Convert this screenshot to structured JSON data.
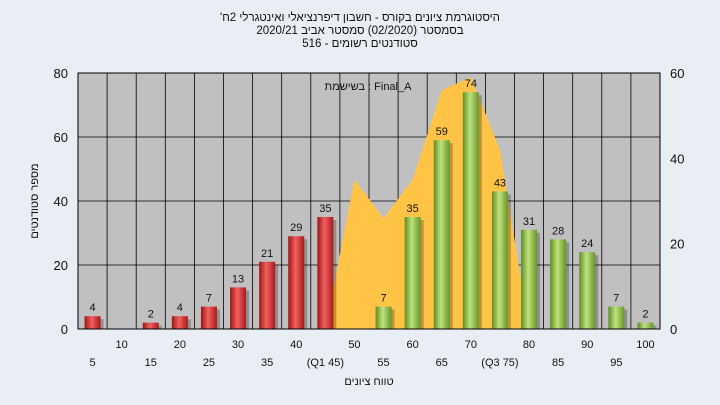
{
  "titles": {
    "line1": "'היסטוגרמת ציונים בקורס - חשבון דיפרנציאלי ואינטגרלי 2ח",
    "line2": "בסמסטר  (02/2020)  סמסטר אביב 2020/21",
    "line3": "סטודנטים רשומים - 516"
  },
  "chart_data": {
    "type": "bar",
    "annotation": "בשישמת : Final_A",
    "xlabel": "טווח ציונים",
    "ylabel": "מספר סטודנטים",
    "ylim": [
      0,
      80
    ],
    "yticks": [
      0,
      20,
      40,
      60,
      80
    ],
    "y2lim": [
      0,
      60
    ],
    "y2ticks": [
      0,
      20,
      40,
      60
    ],
    "grid": true,
    "categories": [
      "5",
      "10",
      "15",
      "20",
      "25",
      "30",
      "35",
      "40",
      "45",
      "50",
      "55",
      "60",
      "65",
      "70",
      "75",
      "80",
      "85",
      "90",
      "95",
      "100"
    ],
    "tick_labels": [
      "5",
      "10",
      "15",
      "20",
      "25",
      "30",
      "35",
      "40",
      "(Q1 45)",
      "50",
      "55",
      "60",
      "65",
      "70",
      "(Q3 75)",
      "80",
      "85",
      "90",
      "95",
      "100"
    ],
    "series": [
      {
        "values": [
          4,
          0,
          2,
          4,
          7,
          13,
          21,
          29,
          35,
          0,
          7,
          35,
          59,
          74,
          43,
          31,
          28,
          24,
          7,
          2
        ],
        "data_labels": [
          "4",
          "",
          "2",
          "4",
          "7",
          "13",
          "21",
          "29",
          "35",
          "",
          "7",
          "35",
          "59",
          "74",
          "43",
          "31",
          "28",
          "24",
          "7",
          "2"
        ],
        "colors": [
          "#e03030",
          "#e03030",
          "#e03030",
          "#e03030",
          "#e03030",
          "#e03030",
          "#e03030",
          "#e03030",
          "#e03030",
          "#e03030",
          "#8cc048",
          "#8cc048",
          "#8cc048",
          "#8cc048",
          "#8cc048",
          "#8cc048",
          "#8cc048",
          "#8cc048",
          "#8cc048",
          "#8cc048"
        ]
      }
    ],
    "area_series": {
      "color": "#ffc445",
      "x_start": "45",
      "x_end": "80",
      "values": [
        0,
        35,
        26,
        35,
        56,
        59,
        42,
        0
      ]
    },
    "colors": {
      "plot_background": "#c0c0c0",
      "page_background": "#e9eef5",
      "fail_bar": "#e03030",
      "pass_bar": "#8cc048",
      "area": "#ffc445"
    }
  }
}
